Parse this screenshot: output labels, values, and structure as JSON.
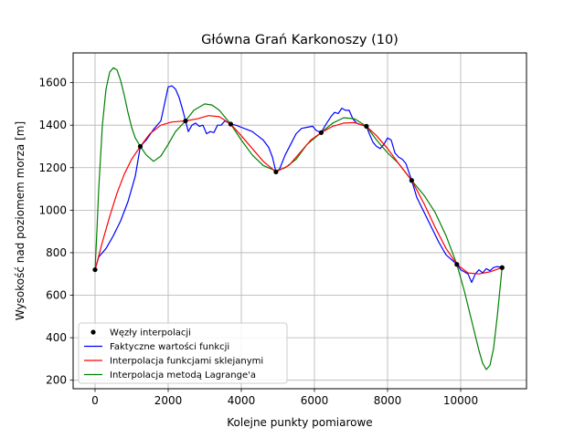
{
  "chart_data": {
    "type": "line",
    "title": "Główna Grań Karkonoszy (10)",
    "xlabel": "Kolejne punkty pomiarowe",
    "ylabel": "Wysokość nad poziomem morza [m]",
    "xlim": [
      -600,
      11800
    ],
    "ylim": [
      160,
      1740
    ],
    "xticks": [
      0,
      2000,
      4000,
      6000,
      8000,
      10000
    ],
    "yticks": [
      200,
      400,
      600,
      800,
      1000,
      1200,
      1400,
      1600
    ],
    "grid": true,
    "legend_position": "lower-left",
    "series": [
      {
        "name": "Węzły interpolacji",
        "kind": "scatter",
        "color": "#000000",
        "x": [
          0,
          1237,
          2474,
          3711,
          4948,
          6185,
          7422,
          8659,
          9896,
          11133
        ],
        "y": [
          720,
          1300,
          1420,
          1405,
          1180,
          1365,
          1395,
          1140,
          745,
          730
        ]
      },
      {
        "name": "Faktyczne wartości funkcji",
        "kind": "line",
        "color": "#0000ff",
        "x": [
          0,
          100,
          300,
          500,
          700,
          900,
          1100,
          1237,
          1400,
          1600,
          1800,
          1900,
          2000,
          2100,
          2200,
          2300,
          2400,
          2474,
          2550,
          2650,
          2750,
          2850,
          2950,
          3050,
          3150,
          3250,
          3350,
          3450,
          3550,
          3711,
          3850,
          4000,
          4150,
          4300,
          4450,
          4600,
          4750,
          4850,
          4948,
          5050,
          5200,
          5350,
          5500,
          5650,
          5800,
          5950,
          6050,
          6185,
          6300,
          6450,
          6550,
          6650,
          6750,
          6850,
          6950,
          7050,
          7150,
          7300,
          7422,
          7500,
          7600,
          7700,
          7800,
          7900,
          8000,
          8100,
          8200,
          8300,
          8400,
          8500,
          8659,
          8800,
          9000,
          9200,
          9400,
          9600,
          9800,
          9896,
          10000,
          10100,
          10200,
          10300,
          10400,
          10500,
          10600,
          10700,
          10800,
          10900,
          11000,
          11133
        ],
        "y": [
          720,
          780,
          820,
          880,
          950,
          1040,
          1160,
          1300,
          1330,
          1380,
          1420,
          1500,
          1580,
          1585,
          1570,
          1530,
          1470,
          1420,
          1370,
          1400,
          1410,
          1395,
          1400,
          1360,
          1370,
          1365,
          1400,
          1400,
          1420,
          1405,
          1400,
          1390,
          1380,
          1370,
          1350,
          1330,
          1295,
          1250,
          1180,
          1195,
          1260,
          1310,
          1360,
          1385,
          1390,
          1395,
          1375,
          1365,
          1400,
          1440,
          1460,
          1455,
          1480,
          1470,
          1470,
          1430,
          1410,
          1400,
          1395,
          1360,
          1320,
          1300,
          1290,
          1310,
          1340,
          1330,
          1270,
          1250,
          1240,
          1220,
          1140,
          1060,
          990,
          920,
          850,
          790,
          760,
          745,
          720,
          710,
          700,
          660,
          700,
          720,
          705,
          725,
          715,
          730,
          735,
          730
        ]
      },
      {
        "name": "Interpolacja funkcjami sklejanymi",
        "kind": "line",
        "color": "#ff0000",
        "x": [
          0,
          200,
          400,
          600,
          800,
          1000,
          1237,
          1500,
          1800,
          2100,
          2474,
          2800,
          3100,
          3400,
          3711,
          4000,
          4300,
          4600,
          4948,
          5300,
          5600,
          5900,
          6185,
          6500,
          6800,
          7100,
          7422,
          7700,
          8000,
          8300,
          8659,
          9000,
          9300,
          9600,
          9896,
          10200,
          10500,
          10800,
          11133
        ],
        "y": [
          720,
          850,
          970,
          1080,
          1170,
          1240,
          1300,
          1360,
          1400,
          1415,
          1420,
          1430,
          1445,
          1440,
          1405,
          1350,
          1290,
          1230,
          1180,
          1210,
          1270,
          1330,
          1365,
          1395,
          1410,
          1412,
          1395,
          1350,
          1290,
          1220,
          1140,
          1030,
          920,
          820,
          745,
          705,
          700,
          710,
          730
        ]
      },
      {
        "name": "Interpolacja metodą Lagrange'a",
        "kind": "line",
        "color": "#008000",
        "x": [
          0,
          50,
          100,
          200,
          300,
          400,
          500,
          600,
          700,
          800,
          900,
          1000,
          1100,
          1237,
          1400,
          1600,
          1800,
          2000,
          2200,
          2474,
          2700,
          3000,
          3200,
          3400,
          3711,
          4000,
          4300,
          4600,
          4948,
          5200,
          5500,
          5800,
          6185,
          6500,
          6800,
          7100,
          7422,
          7700,
          8000,
          8300,
          8659,
          9000,
          9300,
          9600,
          9896,
          10100,
          10300,
          10500,
          10600,
          10700,
          10800,
          10900,
          11000,
          11133
        ],
        "y": [
          720,
          900,
          1100,
          1400,
          1570,
          1650,
          1670,
          1660,
          1610,
          1540,
          1460,
          1390,
          1340,
          1300,
          1260,
          1230,
          1255,
          1310,
          1370,
          1420,
          1470,
          1500,
          1495,
          1470,
          1405,
          1330,
          1260,
          1210,
          1185,
          1200,
          1240,
          1310,
          1365,
          1410,
          1435,
          1430,
          1395,
          1330,
          1270,
          1220,
          1140,
          1070,
          990,
          880,
          745,
          620,
          480,
          340,
          280,
          250,
          270,
          350,
          500,
          730
        ]
      }
    ]
  }
}
